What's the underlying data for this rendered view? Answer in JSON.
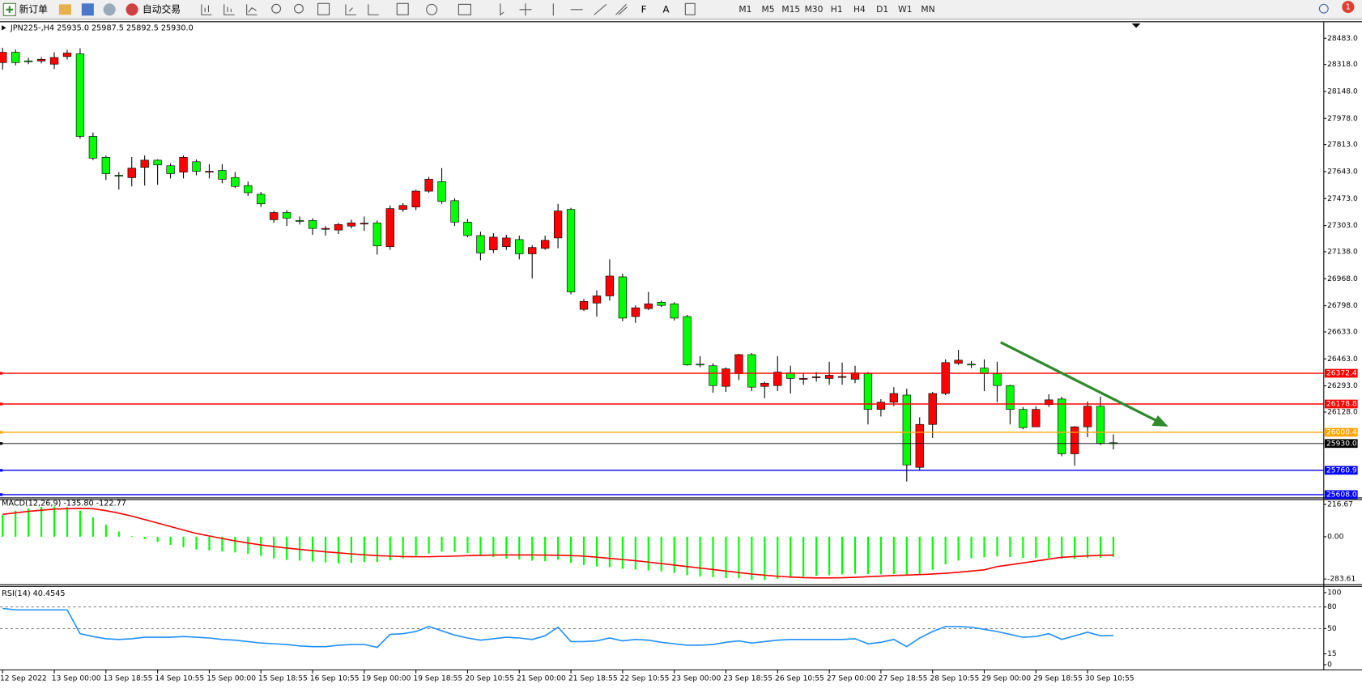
{
  "toolbar": {
    "new_order": "新订单",
    "auto_trading": "自动交易",
    "timeframes": [
      "M1",
      "M5",
      "M15",
      "M30",
      "H1",
      "H4",
      "D1",
      "W1",
      "MN"
    ],
    "notification_count": 1
  },
  "chart_data": [
    {
      "type": "candlestick",
      "title": "JPN225-,H4 25935.0 25987.5 25892.5 25930.0",
      "categories": [
        "12 Sep 2022",
        null,
        null,
        null,
        "13 Sep 00:00",
        null,
        null,
        null,
        "13 Sep 18:55",
        null,
        null,
        null,
        "14 Sep 10:55",
        null,
        null,
        null,
        "15 Sep 00:00",
        null,
        null,
        null,
        "15 Sep 18:55",
        null,
        null,
        null,
        "16 Sep 10:55",
        null,
        null,
        null,
        "19 Sep 00:00",
        null,
        null,
        null,
        "19 Sep 18:55",
        null,
        null,
        null,
        "20 Sep 10:55",
        null,
        null,
        null,
        "21 Sep 00:00",
        null,
        null,
        null,
        "21 Sep 18:55",
        null,
        null,
        null,
        "22 Sep 10:55",
        null,
        null,
        null,
        "23 Sep 00:00",
        null,
        null,
        null,
        "23 Sep 18:55",
        null,
        null,
        null,
        "26 Sep 10:55",
        null,
        null,
        null,
        "27 Sep 00:00",
        null,
        null,
        null,
        "27 Sep 18:55",
        null,
        null,
        null,
        "28 Sep 10:55",
        null,
        null,
        null,
        "29 Sep 00:00",
        null,
        null,
        null,
        "29 Sep 18:55",
        null,
        null,
        null,
        "30 Sep 10:55",
        null,
        null
      ],
      "open": [
        28330,
        28395,
        28341,
        28340,
        28320,
        28368,
        28385,
        27865,
        27733,
        27620,
        27605,
        27670,
        27715,
        27680,
        27640,
        27705,
        27640,
        27650,
        27606,
        27555,
        27500,
        27340,
        27385,
        27335,
        27335,
        27280,
        27275,
        27300,
        27315,
        27320,
        27170,
        27405,
        27420,
        27520,
        27580,
        27460,
        27325,
        27240,
        27150,
        27170,
        27215,
        27125,
        27160,
        27225,
        27405,
        26775,
        26815,
        26860,
        26980,
        26730,
        26780,
        26820,
        26810,
        26730,
        26430,
        26420,
        26290,
        26370,
        26490,
        26290,
        26295,
        26375,
        26335,
        26345,
        26340,
        26350,
        26335,
        26370,
        26145,
        26190,
        26235,
        25780,
        26050,
        26245,
        26435,
        26430,
        26405,
        26370,
        26295,
        26145,
        26035,
        26175,
        26210,
        25865,
        26035,
        26165,
        25935
      ],
      "high": [
        28423,
        28412,
        28360,
        28365,
        28395,
        28410,
        28420,
        27890,
        27745,
        27640,
        27735,
        27745,
        27720,
        27695,
        27745,
        27720,
        27690,
        27690,
        27640,
        27580,
        27515,
        27395,
        27400,
        27360,
        27350,
        27300,
        27320,
        27340,
        27360,
        27335,
        27430,
        27445,
        27530,
        27610,
        27665,
        27475,
        27345,
        27265,
        27255,
        27245,
        27240,
        27180,
        27240,
        27440,
        27415,
        26840,
        26895,
        27090,
        27000,
        26800,
        26885,
        26830,
        26820,
        26740,
        26480,
        26435,
        26410,
        26495,
        26500,
        26320,
        26480,
        26420,
        26370,
        26380,
        26445,
        26440,
        26420,
        26380,
        26210,
        26285,
        26275,
        26095,
        26255,
        26460,
        26520,
        26450,
        26460,
        26445,
        26300,
        26160,
        26165,
        26240,
        26225,
        26040,
        26195,
        26225,
        25987.5
      ],
      "low": [
        28286,
        28313,
        28320,
        28325,
        28290,
        28350,
        27850,
        27715,
        27590,
        27530,
        27550,
        27555,
        27560,
        27600,
        27600,
        27620,
        27600,
        27570,
        27540,
        27490,
        27420,
        27320,
        27300,
        27310,
        27245,
        27240,
        27250,
        27285,
        27270,
        27120,
        27150,
        27390,
        27400,
        27510,
        27440,
        27300,
        27230,
        27085,
        27130,
        27150,
        27090,
        26970,
        27150,
        27160,
        26870,
        26765,
        26730,
        26830,
        26700,
        26690,
        26770,
        26790,
        26705,
        26420,
        26410,
        26250,
        26255,
        26330,
        26260,
        26215,
        26260,
        26245,
        26300,
        26320,
        26300,
        26300,
        26310,
        26050,
        26100,
        26165,
        25690,
        25760,
        25965,
        26235,
        26425,
        26405,
        26260,
        26190,
        26050,
        26020,
        26035,
        26160,
        25850,
        25790,
        25970,
        25920,
        25892.5
      ],
      "close": [
        28395,
        28330,
        28335,
        28350,
        28362,
        28390,
        27865,
        27728,
        27630,
        27617,
        27665,
        27715,
        27685,
        27630,
        27733,
        27645,
        27645,
        27595,
        27550,
        27510,
        27440,
        27385,
        27350,
        27330,
        27285,
        27285,
        27310,
        27320,
        27318,
        27175,
        27410,
        27430,
        27520,
        27595,
        27455,
        27325,
        27240,
        27130,
        27230,
        27225,
        27125,
        27165,
        27210,
        27395,
        26885,
        26825,
        26860,
        26985,
        26720,
        26785,
        26810,
        26800,
        26720,
        26425,
        26425,
        26295,
        26400,
        26490,
        26285,
        26310,
        26380,
        26340,
        26340,
        26350,
        26360,
        26352,
        26375,
        26145,
        26190,
        26245,
        25795,
        26050,
        26245,
        26440,
        26455,
        26425,
        26370,
        26295,
        26145,
        26030,
        26145,
        26205,
        25865,
        26035,
        26165,
        25930,
        25930
      ],
      "up_color": "#ff0000",
      "down_color": "#00ff00",
      "ylim": [
        25593,
        28571
      ],
      "yticks": [
        {
          "value": 28483,
          "label": "28483.0"
        },
        {
          "value": 28318,
          "label": "28318.0"
        },
        {
          "value": 28148,
          "label": "28148.0"
        },
        {
          "value": 27978,
          "label": "27978.0"
        },
        {
          "value": 27813,
          "label": "27813.0"
        },
        {
          "value": 27643,
          "label": "27643.0"
        },
        {
          "value": 27473,
          "label": "27473.0"
        },
        {
          "value": 27303,
          "label": "27303.0"
        },
        {
          "value": 27138,
          "label": "27138.0"
        },
        {
          "value": 26968,
          "label": "26968.0"
        },
        {
          "value": 26798,
          "label": "26798.0"
        },
        {
          "value": 26633,
          "label": "26633.0"
        },
        {
          "value": 26463,
          "label": "26463.0"
        },
        {
          "value": 26293,
          "label": "26293.0"
        },
        {
          "value": 26128,
          "label": "26128.0"
        }
      ],
      "levels": [
        {
          "value": 26372.4,
          "color": "#ff0000"
        },
        {
          "value": 26178.8,
          "color": "#ff0000"
        },
        {
          "value": 26000.4,
          "color": "#ffa500"
        },
        {
          "value": 25930,
          "label": "25930.0",
          "color": "#000000"
        },
        {
          "value": 25760.9,
          "color": "#0000ff"
        },
        {
          "value": 25608,
          "label": "25608.0",
          "color": "#0000ff"
        }
      ]
    },
    {
      "type": "macd",
      "title": "MACD(12,26,9) -135.80 -122.77",
      "histogram": {
        "color": "#00ff00",
        "values": [
          147,
          175,
          190,
          200,
          203,
          200,
          175,
          130,
          80,
          35,
          5,
          -15,
          -35,
          -55,
          -70,
          -85,
          -92,
          -98,
          -105,
          -115,
          -128,
          -145,
          -155,
          -160,
          -166,
          -172,
          -178,
          -175,
          -170,
          -170,
          -158,
          -145,
          -128,
          -113,
          -100,
          -102,
          -110,
          -124,
          -136,
          -147,
          -153,
          -160,
          -164,
          -155,
          -175,
          -190,
          -200,
          -203,
          -215,
          -220,
          -226,
          -232,
          -243,
          -258,
          -266,
          -271,
          -277,
          -279,
          -288,
          -290,
          -282,
          -275,
          -268,
          -262,
          -258,
          -252,
          -248,
          -250,
          -252,
          -250,
          -260,
          -252,
          -222,
          -185,
          -160,
          -145,
          -138,
          -132,
          -136,
          -142,
          -142,
          -142,
          -147,
          -147,
          -142,
          -142,
          -135.8
        ]
      },
      "signal": {
        "color": "#ff0000",
        "values": [
          150,
          160,
          170,
          178,
          185,
          188,
          190,
          188,
          175,
          158,
          138,
          115,
          92,
          68,
          45,
          22,
          5,
          -12,
          -28,
          -42,
          -55,
          -66,
          -76,
          -85,
          -93,
          -101,
          -108,
          -115,
          -121,
          -127,
          -130,
          -133,
          -134,
          -134,
          -132,
          -130,
          -127,
          -125,
          -123,
          -122,
          -122,
          -122,
          -123,
          -124,
          -126,
          -130,
          -137,
          -145,
          -153,
          -161,
          -170,
          -180,
          -190,
          -200,
          -210,
          -220,
          -230,
          -240,
          -250,
          -258,
          -265,
          -270,
          -274,
          -276,
          -276,
          -275,
          -272,
          -268,
          -264,
          -260,
          -257,
          -254,
          -250,
          -245,
          -238,
          -230,
          -222,
          -200,
          -188,
          -176,
          -163,
          -150,
          -138,
          -133,
          -128,
          -125,
          -122.77
        ]
      },
      "ylim": [
        -316,
        249
      ],
      "yticks": [
        216.67,
        {
          "value": 0,
          "label": "0.00"
        },
        -283.61
      ]
    },
    {
      "type": "rsi",
      "title": "RSI(14) 40.4545",
      "color": "#1e90ff",
      "values": [
        78,
        76,
        76,
        76,
        76,
        76,
        43,
        39,
        36,
        35,
        36,
        38,
        38,
        38,
        39,
        38,
        37,
        35,
        34,
        32,
        30,
        29,
        28,
        26,
        25,
        25,
        27,
        28,
        28,
        24,
        42,
        43,
        46,
        53,
        47,
        41,
        37,
        34,
        36,
        38,
        37,
        35,
        40,
        52,
        32,
        32,
        33,
        37,
        33,
        35,
        34,
        31,
        29,
        27,
        27,
        28,
        31,
        33,
        30,
        32,
        34,
        35,
        35,
        35,
        35,
        35,
        36,
        29,
        31,
        35,
        25,
        37,
        46,
        53,
        53,
        52,
        49,
        46,
        42,
        38,
        39,
        43,
        35,
        40,
        45,
        40,
        40.4545
      ],
      "ylim": [
        -6,
        106
      ],
      "yticks": [
        100,
        80,
        50,
        15,
        0
      ],
      "levels": [
        80,
        50
      ]
    }
  ]
}
